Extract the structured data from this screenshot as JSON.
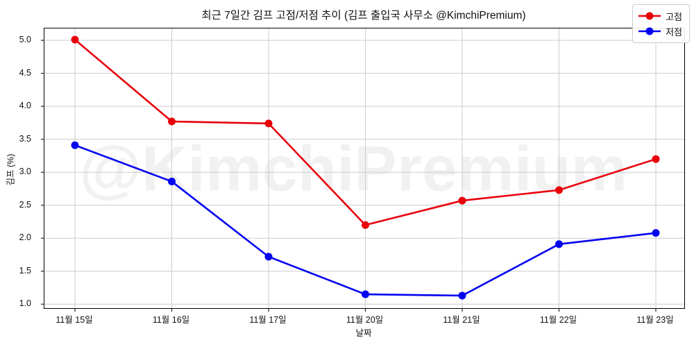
{
  "watermark": "@KimchiPremium",
  "chart_data": {
    "type": "line",
    "title": "최근 7일간 김프 고점/저점 추이 (김프 출입국 사무소 @KimchiPremium)",
    "xlabel": "날짜",
    "ylabel": "김프 (%)",
    "categories": [
      "11월 15일",
      "11월 16일",
      "11월 17일",
      "11월 20일",
      "11월 21일",
      "11월 22일",
      "11월 23일"
    ],
    "series": [
      {
        "name": "고점",
        "color": "#e8000b",
        "values": [
          5.01,
          3.77,
          3.74,
          2.2,
          2.57,
          2.73,
          3.2
        ]
      },
      {
        "name": "저점",
        "color": "#0202f0",
        "values": [
          3.41,
          2.86,
          1.72,
          1.15,
          1.13,
          1.91,
          2.08
        ]
      }
    ],
    "yticks": [
      1.0,
      1.5,
      2.0,
      2.5,
      3.0,
      3.5,
      4.0,
      4.5,
      5.0
    ],
    "ytick_labels": [
      "1.0",
      "1.5",
      "2.0",
      "2.5",
      "3.0",
      "3.5",
      "4.0",
      "4.5",
      "5.0"
    ],
    "ylim": [
      0.94,
      5.18
    ],
    "grid": true,
    "grid_color": "#cccccc",
    "legend_position": "upper right",
    "legend_labels": [
      "고점",
      "저점"
    ]
  }
}
